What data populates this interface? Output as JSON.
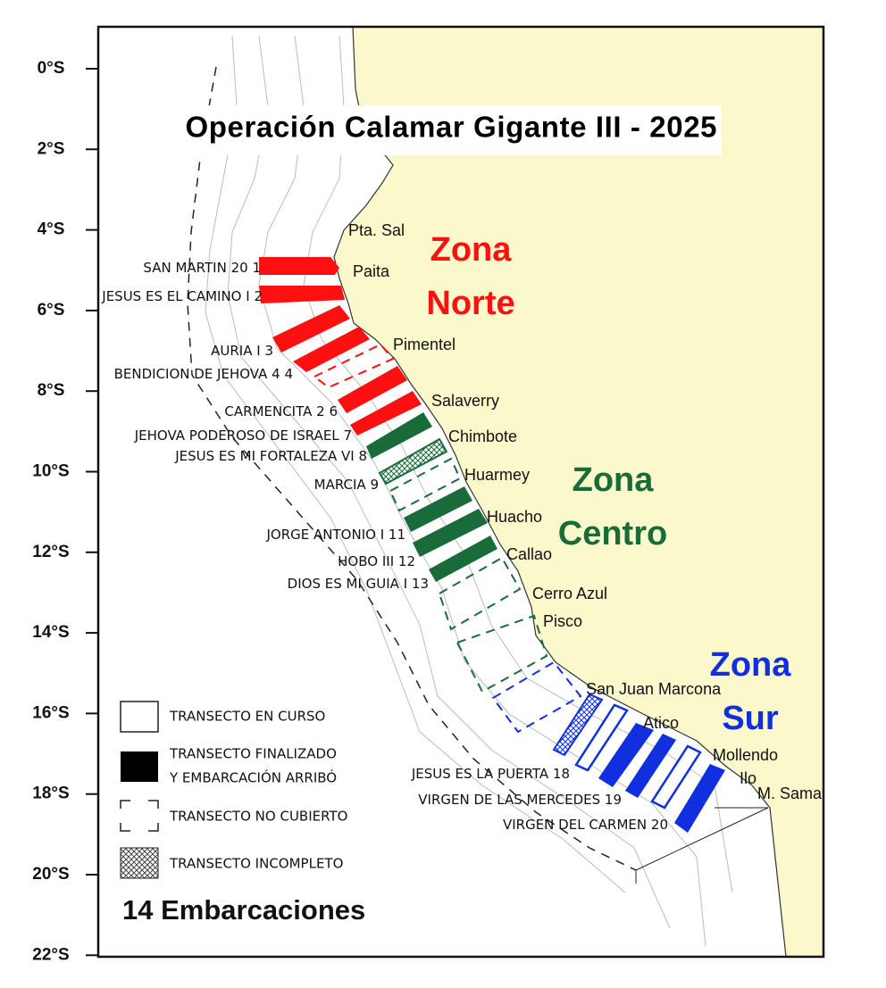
{
  "title": "Operación Calamar Gigante III - 2025",
  "latitude_labels": [
    "0°S",
    "2°S",
    "4°S",
    "6°S",
    "8°S",
    "10°S",
    "12°S",
    "14°S",
    "16°S",
    "18°S",
    "20°S",
    "22°S"
  ],
  "zones": [
    {
      "lines": [
        "Zona",
        "Norte"
      ],
      "color": "#ff1010"
    },
    {
      "lines": [
        "Zona",
        "Centro"
      ],
      "color": "#1a6b3a"
    },
    {
      "lines": [
        "Zona",
        "Sur"
      ],
      "color": "#1030e0"
    }
  ],
  "places": [
    "Pta. Sal",
    "Paita",
    "Pimentel",
    "Salaverry",
    "Chimbote",
    "Huarmey",
    "Huacho",
    "Callao",
    "Cerro Azul",
    "Pisco",
    "San Juan Marcona",
    "Atico",
    "Mollendo",
    "Ilo",
    "M. Sama"
  ],
  "vessels": [
    {
      "name": "SAN MARTIN 20",
      "number": 1
    },
    {
      "name": "JESUS ES EL CAMINO I",
      "number": 2
    },
    {
      "name": "AURIA I",
      "number": 3
    },
    {
      "name": "BENDICION DE JEHOVA 4",
      "number": 4
    },
    {
      "name": "CARMENCITA 2",
      "number": 6
    },
    {
      "name": "JEHOVA PODEROSO DE ISRAEL",
      "number": 7
    },
    {
      "name": "JESUS ES MI FORTALEZA VI",
      "number": 8
    },
    {
      "name": "MARCIA",
      "number": 9
    },
    {
      "name": "JORGE ANTONIO I",
      "number": 11
    },
    {
      "name": "HOBO III",
      "number": 12
    },
    {
      "name": "DIOS ES MI GUIA I",
      "number": 13
    },
    {
      "name": "JESUS ES LA PUERTA",
      "number": 18
    },
    {
      "name": "VIRGEN DE LAS MERCEDES",
      "number": 19
    },
    {
      "name": "VIRGEN DEL CARMEN",
      "number": 20
    }
  ],
  "legend": [
    {
      "lines": [
        "TRANSECTO EN CURSO"
      ]
    },
    {
      "lines": [
        "TRANSECTO FINALIZADO",
        "Y EMBARCACIÓN ARRIBÓ"
      ]
    },
    {
      "lines": [
        "TRANSECTO NO CUBIERTO"
      ]
    },
    {
      "lines": [
        "TRANSECTO INCOMPLETO"
      ]
    }
  ],
  "footer": "14 Embarcaciones"
}
